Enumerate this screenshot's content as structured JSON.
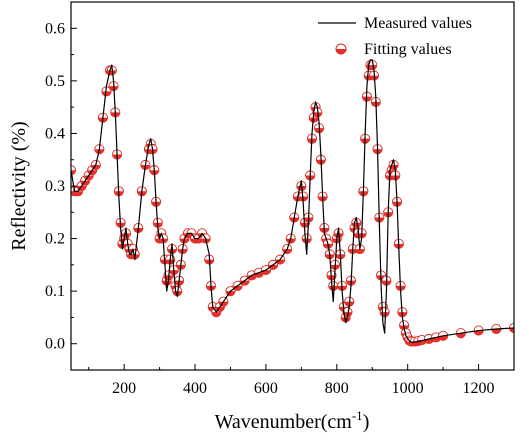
{
  "chart_data": {
    "type": "line",
    "title": "",
    "xlabel": "Wavenumber(cm",
    "xlabel_superscript": "-1",
    "xlabel_suffix": ")",
    "ylabel": "Reflectivity (%)",
    "xlim": [
      50,
      1300
    ],
    "ylim": [
      -0.05,
      0.65
    ],
    "xticks": [
      200,
      400,
      600,
      800,
      1000,
      1200
    ],
    "xtick_labels": [
      "200",
      "400",
      "600",
      "800",
      "1000",
      "1200"
    ],
    "yticks": [
      0.0,
      0.1,
      0.2,
      0.3,
      0.4,
      0.5,
      0.6
    ],
    "ytick_labels": [
      "0.0",
      "0.1",
      "0.2",
      "0.3",
      "0.4",
      "0.5",
      "0.6"
    ],
    "grid": false,
    "legend_position": "top-right",
    "series": [
      {
        "name": "Measured values",
        "style": "line",
        "color": "#000000",
        "x": [
          50,
          60,
          70,
          80,
          90,
          100,
          110,
          120,
          130,
          140,
          150,
          160,
          165,
          170,
          175,
          180,
          185,
          190,
          195,
          200,
          205,
          210,
          215,
          220,
          225,
          230,
          240,
          250,
          260,
          270,
          275,
          280,
          285,
          290,
          295,
          300,
          305,
          310,
          315,
          320,
          325,
          330,
          335,
          340,
          345,
          350,
          355,
          360,
          365,
          370,
          380,
          390,
          400,
          410,
          420,
          430,
          440,
          445,
          450,
          460,
          470,
          480,
          500,
          520,
          540,
          560,
          580,
          600,
          620,
          640,
          660,
          670,
          680,
          690,
          700,
          705,
          710,
          715,
          720,
          725,
          730,
          735,
          740,
          745,
          750,
          755,
          760,
          765,
          770,
          775,
          780,
          785,
          790,
          795,
          800,
          805,
          810,
          815,
          820,
          825,
          830,
          835,
          840,
          845,
          850,
          855,
          860,
          865,
          870,
          875,
          880,
          885,
          890,
          895,
          900,
          905,
          910,
          915,
          920,
          925,
          930,
          935,
          940,
          945,
          950,
          955,
          960,
          965,
          970,
          975,
          980,
          985,
          990,
          995,
          1000,
          1005,
          1010,
          1020,
          1030,
          1040,
          1060,
          1080,
          1100,
          1150,
          1200,
          1250,
          1300
        ],
        "y": [
          0.33,
          0.29,
          0.29,
          0.3,
          0.31,
          0.32,
          0.33,
          0.34,
          0.37,
          0.43,
          0.49,
          0.52,
          0.53,
          0.5,
          0.44,
          0.36,
          0.28,
          0.22,
          0.18,
          0.2,
          0.22,
          0.19,
          0.17,
          0.17,
          0.18,
          0.16,
          0.22,
          0.29,
          0.34,
          0.38,
          0.39,
          0.37,
          0.33,
          0.27,
          0.22,
          0.2,
          0.21,
          0.2,
          0.15,
          0.1,
          0.12,
          0.16,
          0.19,
          0.14,
          0.1,
          0.09,
          0.12,
          0.15,
          0.18,
          0.2,
          0.21,
          0.21,
          0.2,
          0.2,
          0.21,
          0.2,
          0.17,
          0.11,
          0.07,
          0.06,
          0.07,
          0.08,
          0.1,
          0.11,
          0.12,
          0.13,
          0.135,
          0.14,
          0.15,
          0.16,
          0.18,
          0.2,
          0.24,
          0.28,
          0.31,
          0.27,
          0.21,
          0.17,
          0.23,
          0.32,
          0.4,
          0.44,
          0.46,
          0.45,
          0.42,
          0.36,
          0.28,
          0.21,
          0.2,
          0.19,
          0.17,
          0.12,
          0.08,
          0.14,
          0.2,
          0.22,
          0.17,
          0.1,
          0.06,
          0.04,
          0.05,
          0.07,
          0.11,
          0.18,
          0.23,
          0.24,
          0.22,
          0.18,
          0.2,
          0.29,
          0.4,
          0.49,
          0.53,
          0.54,
          0.54,
          0.52,
          0.47,
          0.37,
          0.23,
          0.11,
          0.04,
          0.02,
          0.1,
          0.25,
          0.33,
          0.34,
          0.35,
          0.33,
          0.27,
          0.18,
          0.1,
          0.05,
          0.03,
          0.015,
          0.01,
          0.005,
          0.003,
          0.003,
          0.004,
          0.006,
          0.009,
          0.012,
          0.015,
          0.02,
          0.025,
          0.028,
          0.03
        ]
      },
      {
        "name": "Fitting values",
        "style": "marker",
        "color": "#e8302a",
        "x": [
          50,
          60,
          70,
          80,
          90,
          100,
          110,
          120,
          130,
          140,
          150,
          160,
          165,
          170,
          175,
          180,
          185,
          190,
          195,
          200,
          205,
          210,
          215,
          220,
          225,
          230,
          240,
          250,
          260,
          270,
          275,
          280,
          285,
          290,
          295,
          300,
          305,
          310,
          315,
          320,
          325,
          330,
          335,
          340,
          345,
          350,
          355,
          360,
          365,
          370,
          380,
          390,
          400,
          410,
          420,
          430,
          440,
          445,
          450,
          460,
          470,
          480,
          500,
          520,
          540,
          560,
          580,
          600,
          620,
          640,
          660,
          670,
          680,
          690,
          700,
          705,
          710,
          715,
          720,
          725,
          730,
          735,
          740,
          745,
          750,
          755,
          760,
          765,
          770,
          775,
          780,
          785,
          790,
          795,
          800,
          805,
          810,
          815,
          820,
          825,
          830,
          835,
          840,
          845,
          850,
          855,
          860,
          865,
          870,
          875,
          880,
          885,
          890,
          895,
          900,
          905,
          910,
          915,
          920,
          925,
          930,
          935,
          940,
          945,
          950,
          955,
          960,
          965,
          970,
          975,
          980,
          985,
          990,
          995,
          1000,
          1005,
          1010,
          1020,
          1030,
          1040,
          1060,
          1080,
          1100,
          1150,
          1200,
          1250,
          1300
        ],
        "y": [
          0.33,
          0.29,
          0.29,
          0.3,
          0.31,
          0.32,
          0.33,
          0.34,
          0.37,
          0.43,
          0.48,
          0.52,
          0.52,
          0.49,
          0.44,
          0.36,
          0.29,
          0.23,
          0.19,
          0.2,
          0.21,
          0.19,
          0.18,
          0.17,
          0.18,
          0.17,
          0.22,
          0.29,
          0.34,
          0.37,
          0.38,
          0.37,
          0.33,
          0.27,
          0.23,
          0.2,
          0.21,
          0.2,
          0.16,
          0.12,
          0.13,
          0.16,
          0.18,
          0.14,
          0.11,
          0.1,
          0.12,
          0.15,
          0.18,
          0.2,
          0.21,
          0.21,
          0.2,
          0.2,
          0.21,
          0.2,
          0.16,
          0.11,
          0.07,
          0.06,
          0.07,
          0.08,
          0.1,
          0.11,
          0.12,
          0.13,
          0.135,
          0.14,
          0.15,
          0.16,
          0.18,
          0.2,
          0.24,
          0.28,
          0.3,
          0.28,
          0.23,
          0.2,
          0.24,
          0.32,
          0.39,
          0.43,
          0.45,
          0.44,
          0.41,
          0.35,
          0.28,
          0.22,
          0.2,
          0.19,
          0.17,
          0.13,
          0.11,
          0.15,
          0.2,
          0.21,
          0.17,
          0.11,
          0.07,
          0.05,
          0.06,
          0.08,
          0.12,
          0.18,
          0.22,
          0.23,
          0.21,
          0.18,
          0.21,
          0.29,
          0.39,
          0.47,
          0.51,
          0.53,
          0.53,
          0.51,
          0.46,
          0.37,
          0.24,
          0.13,
          0.07,
          0.06,
          0.12,
          0.25,
          0.32,
          0.33,
          0.34,
          0.32,
          0.27,
          0.19,
          0.11,
          0.06,
          0.035,
          0.02,
          0.012,
          0.006,
          0.004,
          0.004,
          0.005,
          0.007,
          0.009,
          0.012,
          0.015,
          0.02,
          0.025,
          0.028,
          0.03
        ]
      }
    ]
  }
}
